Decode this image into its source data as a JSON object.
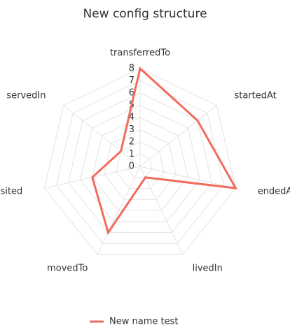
{
  "chart_data": {
    "type": "radar",
    "title": "New config structure",
    "categories": [
      "transferredTo",
      "startedAt",
      "endedAt",
      "livedIn",
      "movedTo",
      "visited",
      "servedIn"
    ],
    "series": [
      {
        "name": "New name test",
        "color": "#f26b5e",
        "values": [
          8,
          6,
          8,
          1,
          6,
          4,
          2
        ]
      }
    ],
    "ylim": [
      0,
      8
    ],
    "yticks": [
      0,
      1,
      2,
      3,
      4,
      5,
      6,
      7,
      8
    ],
    "grid": true,
    "legend": "bottom"
  }
}
